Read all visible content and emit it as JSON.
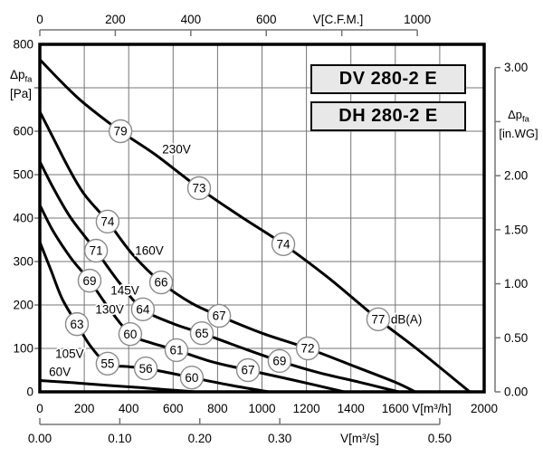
{
  "title_boxes": {
    "box1": "DV 280-2 E",
    "box2": "DH 280-2 E"
  },
  "axis_units": {
    "left_main": "Δp",
    "left_sub": "fa",
    "left_unit": "[Pa]",
    "right_main": "Δp",
    "right_sub": "fa",
    "right_unit": "[in.WG]",
    "top": "V[C.F.M.]",
    "bottom": "V[m³/h]",
    "bottom2": "V[m³/s]"
  },
  "colors": {
    "curve": "#000000",
    "grid": "#757575",
    "axis": "#757575",
    "border": "#000000",
    "marker_stroke": "#8b8b8b",
    "marker_fill": "#ffffff",
    "box_bg": "#e8e8e8",
    "text": "#000000"
  },
  "chart_data": {
    "type": "line",
    "title": "Fan performance curves DV 280-2 E / DH 280-2 E",
    "grid": true,
    "legend": "none",
    "x_axes": {
      "top": {
        "unit": "V[C.F.M.]",
        "range": [
          0,
          1000
        ],
        "unit_at": 790,
        "ticks": [
          {
            "value": 0,
            "label": "0"
          },
          {
            "value": 200,
            "label": "200"
          },
          {
            "value": 400,
            "label": "400"
          },
          {
            "value": 600,
            "label": "600"
          },
          {
            "value": 800,
            "label": ""
          },
          {
            "value": 1000,
            "label": "1000"
          }
        ]
      },
      "bottom": {
        "unit": "V[m³/h]",
        "range": [
          0,
          2000
        ],
        "unit_at": 1764,
        "ticks": [
          {
            "value": 0,
            "label": "0"
          },
          {
            "value": 200,
            "label": "200"
          },
          {
            "value": 400,
            "label": "400"
          },
          {
            "value": 600,
            "label": "600"
          },
          {
            "value": 800,
            "label": "800"
          },
          {
            "value": 1000,
            "label": "1000"
          },
          {
            "value": 1200,
            "label": "1200"
          },
          {
            "value": 1400,
            "label": "1400"
          },
          {
            "value": 1600,
            "label": "1600"
          },
          {
            "value": 1800,
            "label": ""
          },
          {
            "value": 2000,
            "label": "2000"
          }
        ]
      },
      "bottom2": {
        "unit": "V[m³/s]",
        "range": [
          0,
          0.5
        ],
        "unit_at": 0.4,
        "ticks": [
          {
            "value": 0,
            "label": "0.00"
          },
          {
            "value": 0.1,
            "label": "0.10"
          },
          {
            "value": 0.2,
            "label": "0.20"
          },
          {
            "value": 0.3,
            "label": "0.30"
          },
          {
            "value": 0.4,
            "label": ""
          },
          {
            "value": 0.5,
            "label": "0.50"
          }
        ]
      }
    },
    "y_axes": {
      "left": {
        "unit": "Pa",
        "range": [
          0,
          800
        ],
        "ticks": [
          {
            "value": 800,
            "label": "800"
          },
          {
            "value": 700,
            "label": ""
          },
          {
            "value": 600,
            "label": "600"
          },
          {
            "value": 500,
            "label": "500"
          },
          {
            "value": 400,
            "label": "400"
          },
          {
            "value": 300,
            "label": "300"
          },
          {
            "value": 200,
            "label": "200"
          },
          {
            "value": 100,
            "label": "100"
          },
          {
            "value": 0,
            "label": "0"
          }
        ]
      },
      "right": {
        "unit": "in.WG",
        "range": [
          0,
          3
        ],
        "ticks": [
          {
            "value": 3.0,
            "label": "3.00"
          },
          {
            "value": 2.5,
            "label": ""
          },
          {
            "value": 2.0,
            "label": "2.00"
          },
          {
            "value": 1.5,
            "label": "1.50"
          },
          {
            "value": 1.0,
            "label": "1.00"
          },
          {
            "value": 0.5,
            "label": "0.50"
          },
          {
            "value": 0.0,
            "label": "0.00"
          }
        ]
      }
    },
    "series": [
      {
        "name": "230V",
        "points": [
          [
            0,
            765
          ],
          [
            100,
            712
          ],
          [
            200,
            664
          ],
          [
            363,
            600
          ],
          [
            520,
            546
          ],
          [
            717,
            469
          ],
          [
            900,
            405
          ],
          [
            1096,
            340
          ],
          [
            1300,
            262
          ],
          [
            1523,
            167
          ],
          [
            1700,
            98
          ],
          [
            1935,
            0
          ]
        ],
        "markers": [
          {
            "dba": 79,
            "v": 363,
            "p": 600
          },
          {
            "dba": 73,
            "v": 717,
            "p": 469
          },
          {
            "dba": 74,
            "v": 1096,
            "p": 340
          },
          {
            "dba": 77,
            "v": 1523,
            "p": 167
          }
        ]
      },
      {
        "name": "160V",
        "points": [
          [
            0,
            645
          ],
          [
            60,
            585
          ],
          [
            130,
            515
          ],
          [
            200,
            455
          ],
          [
            305,
            392
          ],
          [
            420,
            315
          ],
          [
            546,
            252
          ],
          [
            680,
            205
          ],
          [
            807,
            175
          ],
          [
            1000,
            135
          ],
          [
            1206,
            100
          ],
          [
            1420,
            58
          ],
          [
            1600,
            22
          ],
          [
            1690,
            0
          ]
        ],
        "markers": [
          {
            "dba": 74,
            "v": 305,
            "p": 392
          },
          {
            "dba": 66,
            "v": 546,
            "p": 252
          },
          {
            "dba": 67,
            "v": 807,
            "p": 175
          },
          {
            "dba": 72,
            "v": 1206,
            "p": 100
          }
        ]
      },
      {
        "name": "145V",
        "points": [
          [
            0,
            530
          ],
          [
            60,
            470
          ],
          [
            140,
            400
          ],
          [
            253,
            325
          ],
          [
            360,
            250
          ],
          [
            464,
            190
          ],
          [
            600,
            157
          ],
          [
            729,
            135
          ],
          [
            900,
            103
          ],
          [
            1079,
            71
          ],
          [
            1250,
            45
          ],
          [
            1440,
            22
          ],
          [
            1615,
            0
          ]
        ],
        "markers": [
          {
            "dba": 71,
            "v": 253,
            "p": 325
          },
          {
            "dba": 64,
            "v": 464,
            "p": 190
          },
          {
            "dba": 65,
            "v": 729,
            "p": 135
          },
          {
            "dba": 69,
            "v": 1079,
            "p": 71
          }
        ]
      },
      {
        "name": "130V",
        "points": [
          [
            0,
            430
          ],
          [
            60,
            370
          ],
          [
            140,
            308
          ],
          [
            224,
            256
          ],
          [
            310,
            193
          ],
          [
            407,
            133
          ],
          [
            500,
            113
          ],
          [
            615,
            96
          ],
          [
            770,
            70
          ],
          [
            937,
            50
          ],
          [
            1150,
            26
          ],
          [
            1370,
            0
          ]
        ],
        "markers": [
          {
            "dba": 69,
            "v": 224,
            "p": 256
          },
          {
            "dba": 60,
            "v": 407,
            "p": 133
          },
          {
            "dba": 61,
            "v": 615,
            "p": 96
          },
          {
            "dba": 67,
            "v": 937,
            "p": 50
          }
        ]
      },
      {
        "name": "105V",
        "points": [
          [
            0,
            345
          ],
          [
            50,
            280
          ],
          [
            100,
            215
          ],
          [
            167,
            156
          ],
          [
            230,
            104
          ],
          [
            305,
            65
          ],
          [
            400,
            58
          ],
          [
            477,
            54
          ],
          [
            580,
            44
          ],
          [
            684,
            33
          ],
          [
            850,
            16
          ],
          [
            1030,
            0
          ]
        ],
        "markers": [
          {
            "dba": 63,
            "v": 167,
            "p": 156
          },
          {
            "dba": 55,
            "v": 305,
            "p": 65
          },
          {
            "dba": 56,
            "v": 477,
            "p": 54
          },
          {
            "dba": 60,
            "v": 684,
            "p": 33
          }
        ]
      },
      {
        "name": "60V",
        "points": [
          [
            0,
            26
          ],
          [
            150,
            21
          ],
          [
            300,
            15
          ],
          [
            450,
            10
          ],
          [
            570,
            5
          ],
          [
            700,
            0
          ]
        ],
        "markers": []
      }
    ],
    "curve_labels": [
      {
        "text": "230V",
        "v": 615,
        "p": 558
      },
      {
        "text": "160V",
        "v": 493,
        "p": 325
      },
      {
        "text": "145V",
        "v": 383,
        "p": 233
      },
      {
        "text": "130V",
        "v": 314,
        "p": 190
      },
      {
        "text": "105V",
        "v": 134,
        "p": 88
      },
      {
        "text": "60V",
        "v": 90,
        "p": 46
      }
    ],
    "annotation": {
      "text": "dB(A)",
      "v": 1580,
      "p": 167
    }
  }
}
